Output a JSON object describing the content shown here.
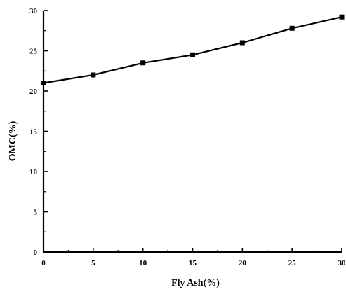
{
  "chart_data": {
    "type": "line",
    "title": "",
    "xlabel": "Fly Ash(%)",
    "ylabel": "OMC(%)",
    "xlim": [
      0,
      30
    ],
    "ylim": [
      0,
      30
    ],
    "xticks": [
      0,
      5,
      10,
      15,
      20,
      25,
      30
    ],
    "yticks": [
      0,
      5,
      10,
      15,
      20,
      25,
      30
    ],
    "xtick_labels": [
      "0",
      "5",
      "10",
      "15",
      "20",
      "25",
      "30"
    ],
    "ytick_labels": [
      "0",
      "5",
      "10",
      "15",
      "20",
      "25",
      "30"
    ],
    "grid": false,
    "legend": "none",
    "series": [
      {
        "x": [
          0,
          5,
          10,
          15,
          20,
          25,
          30
        ],
        "values": [
          21.0,
          22.0,
          23.5,
          24.5,
          26.0,
          27.8,
          29.2
        ],
        "marker": "square",
        "color": "#000000"
      }
    ]
  }
}
